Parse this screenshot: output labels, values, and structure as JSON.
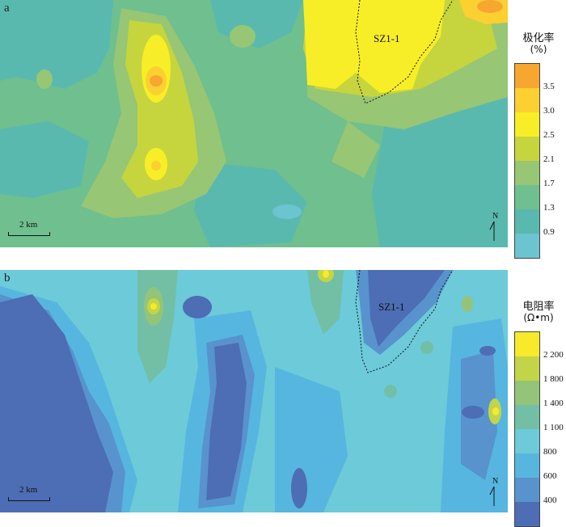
{
  "panels": [
    {
      "letter": "a",
      "zone_label": "SZ1-1",
      "scale_label": "2 km",
      "north_label": "N",
      "legend": {
        "title": "极化率",
        "unit": "(%)",
        "ticks": [
          "3.5",
          "3.0",
          "2.5",
          "2.1",
          "1.7",
          "1.3",
          "0.9"
        ],
        "colors": [
          "#f7a62f",
          "#fbd031",
          "#f8ee27",
          "#c6d53e",
          "#97c674",
          "#6fbf8f",
          "#5ab9ae",
          "#6cc4d0"
        ]
      }
    },
    {
      "letter": "b",
      "zone_label": "SZ1-1",
      "scale_label": "2 km",
      "north_label": "N",
      "legend": {
        "title": "电阻率",
        "unit": "(Ω•m)",
        "ticks": [
          "2 200",
          "1 800",
          "1 400",
          "1 100",
          "800",
          "600",
          "400"
        ],
        "colors": [
          "#f6ea2b",
          "#c2d548",
          "#93c47a",
          "#72bfa6",
          "#6ccad9",
          "#56b6df",
          "#5893ce",
          "#4d6db4"
        ]
      }
    }
  ]
}
